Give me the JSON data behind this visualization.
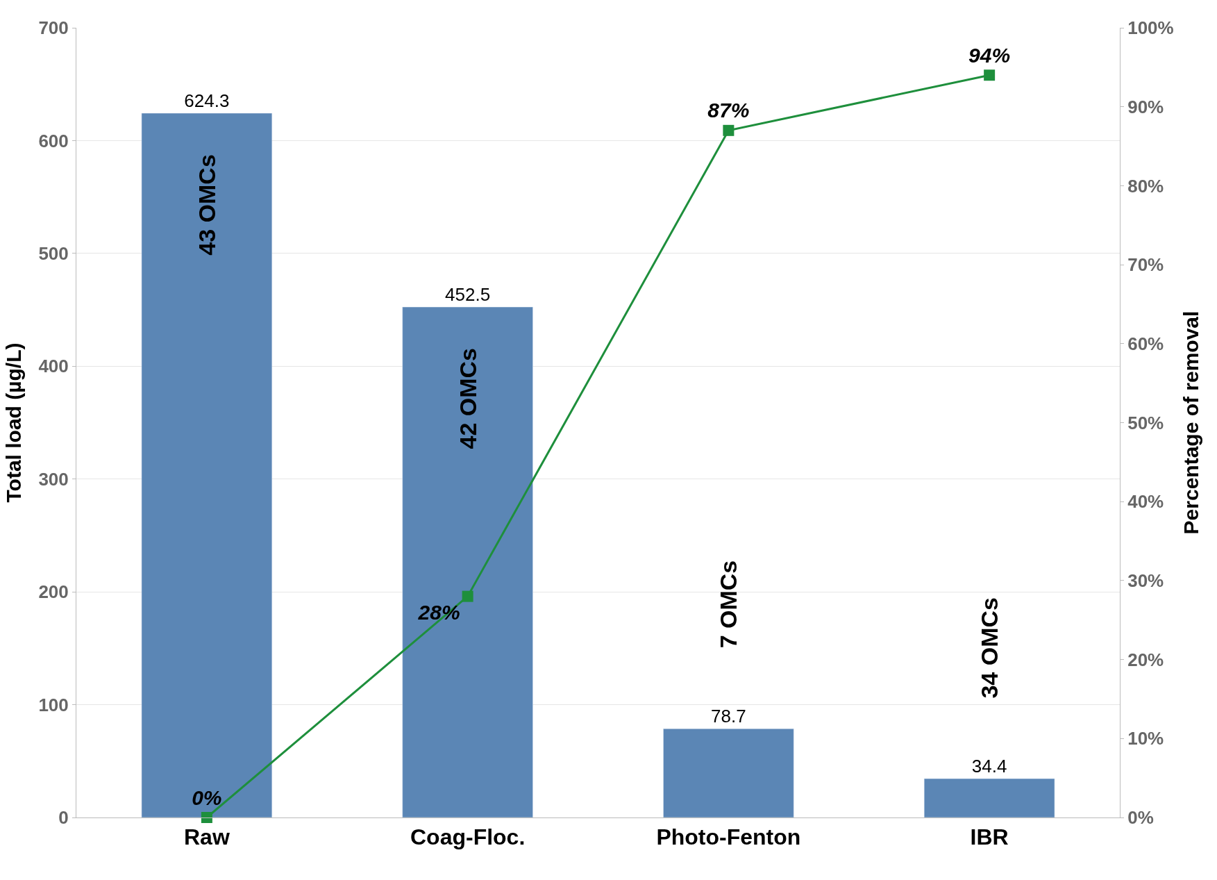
{
  "chart_data": {
    "type": "bar",
    "ylabel": "Total load (µg/L)",
    "y2label": "Percentage of removal",
    "categories": [
      "Raw",
      "Coag-Floc.",
      "Photo-Fenton",
      "IBR"
    ],
    "series": [
      {
        "color": "#5b86b5",
        "values": [
          624.3,
          452.5,
          78.7,
          34.4
        ],
        "value_labels": [
          "624.3",
          "452.5",
          "78.7",
          "34.4"
        ]
      },
      {
        "type": "line",
        "axis": "y2",
        "color": "#1e8f3c",
        "marker": "square",
        "values": [
          0,
          28,
          87,
          94
        ],
        "value_labels": [
          "0%",
          "28%",
          "87%",
          "94%"
        ]
      }
    ],
    "ylim": [
      0,
      700
    ],
    "yticks": [
      0,
      100,
      200,
      300,
      400,
      500,
      600,
      700
    ],
    "y2lim": [
      0,
      100
    ],
    "y2ticks": [
      {
        "value": 0,
        "label": "0%"
      },
      {
        "value": 10,
        "label": "10%"
      },
      {
        "value": 20,
        "label": "20%"
      },
      {
        "value": 30,
        "label": "30%"
      },
      {
        "value": 40,
        "label": "40%"
      },
      {
        "value": 50,
        "label": "50%"
      },
      {
        "value": 60,
        "label": "60%"
      },
      {
        "value": 70,
        "label": "70%"
      },
      {
        "value": 80,
        "label": "80%"
      },
      {
        "value": 90,
        "label": "90%"
      },
      {
        "value": 100,
        "label": "100%"
      }
    ],
    "annotations": [
      "43 OMCs",
      "42 OMCs",
      "7 OMCs",
      "34 OMCs"
    ],
    "grid": "y",
    "legend": false
  }
}
